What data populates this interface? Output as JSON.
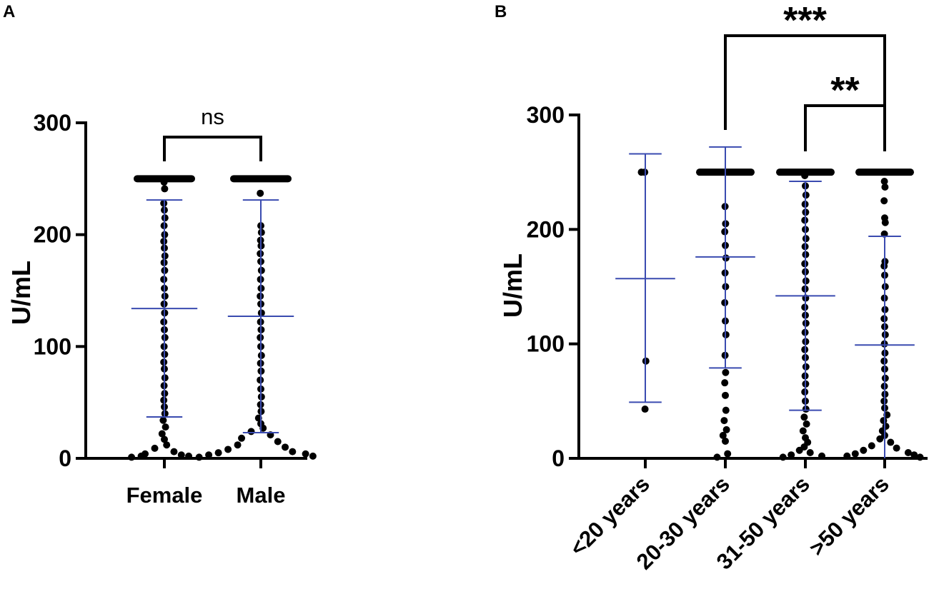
{
  "chart_data": [
    {
      "panel": "A",
      "type": "scatter",
      "ylabel": "U/mL",
      "ylim": [
        0,
        300
      ],
      "yticks": [
        "0",
        "100",
        "200",
        "300"
      ],
      "categories": [
        "Female",
        "Male"
      ],
      "groups": [
        {
          "name": "Female",
          "mean": 134,
          "sd_upper": 231,
          "sd_lower": 37,
          "cap_value": 250,
          "points": [
            250,
            250,
            250,
            250,
            250,
            250,
            250,
            250,
            250,
            250,
            250,
            250,
            250,
            250,
            250,
            250,
            250,
            250,
            247,
            241,
            228,
            222,
            215,
            208,
            200,
            194,
            188,
            181,
            175,
            168,
            160,
            152,
            145,
            138,
            130,
            122,
            115,
            108,
            100,
            93,
            86,
            80,
            72,
            65,
            58,
            52,
            46,
            40,
            34,
            28,
            22,
            17,
            12,
            9,
            6,
            4,
            3,
            2,
            2,
            1
          ]
        },
        {
          "name": "Male",
          "mean": 127,
          "sd_upper": 231,
          "sd_lower": 23,
          "cap_value": 250,
          "points": [
            250,
            250,
            250,
            250,
            250,
            250,
            250,
            250,
            250,
            250,
            250,
            250,
            250,
            250,
            250,
            250,
            250,
            250,
            250,
            250,
            237,
            208,
            202,
            195,
            190,
            183,
            176,
            168,
            160,
            152,
            145,
            138,
            130,
            122,
            115,
            108,
            100,
            92,
            85,
            78,
            70,
            62,
            55,
            48,
            42,
            36,
            31,
            27,
            24,
            21,
            18,
            15,
            12,
            10,
            8,
            6,
            5,
            4,
            3,
            2,
            1
          ]
        }
      ],
      "comparisons": [
        {
          "from": "Female",
          "to": "Male",
          "label": "ns",
          "level": 1
        }
      ]
    },
    {
      "panel": "B",
      "type": "scatter",
      "ylabel": "U/mL",
      "ylim": [
        0,
        300
      ],
      "yticks": [
        "0",
        "100",
        "200",
        "300"
      ],
      "categories": [
        "<20 years",
        "20-30 years",
        "31-50 years",
        ">50 years"
      ],
      "groups": [
        {
          "name": "<20 years",
          "mean": 157,
          "sd_upper": 266,
          "sd_lower": 49,
          "cap_value": null,
          "points": [
            250,
            250,
            85,
            43
          ]
        },
        {
          "name": "20-30 years",
          "mean": 176,
          "sd_upper": 272,
          "sd_lower": 79,
          "cap_value": 250,
          "points": [
            250,
            250,
            250,
            250,
            250,
            250,
            250,
            250,
            250,
            250,
            250,
            250,
            250,
            220,
            205,
            198,
            186,
            175,
            162,
            150,
            136,
            120,
            108,
            90,
            75,
            66,
            55,
            42,
            33,
            25,
            20,
            15,
            4,
            1
          ]
        },
        {
          "name": "31-50 years",
          "mean": 142,
          "sd_upper": 242,
          "sd_lower": 42,
          "cap_value": 250,
          "points": [
            250,
            250,
            250,
            250,
            250,
            250,
            250,
            250,
            250,
            250,
            250,
            250,
            250,
            250,
            250,
            247,
            238,
            230,
            222,
            215,
            208,
            200,
            192,
            185,
            178,
            170,
            163,
            155,
            148,
            140,
            132,
            125,
            118,
            110,
            102,
            95,
            88,
            80,
            72,
            65,
            58,
            50,
            43,
            36,
            30,
            24,
            18,
            14,
            10,
            7,
            5,
            3,
            2,
            1
          ]
        },
        {
          "name": ">50 years",
          "mean": 99,
          "sd_upper": 194,
          "sd_lower": null,
          "cap_value": 250,
          "points": [
            250,
            250,
            250,
            250,
            250,
            250,
            250,
            250,
            250,
            250,
            250,
            250,
            250,
            250,
            250,
            250,
            250,
            250,
            242,
            237,
            225,
            210,
            206,
            196,
            172,
            168,
            160,
            150,
            140,
            130,
            122,
            115,
            108,
            100,
            92,
            85,
            78,
            70,
            63,
            56,
            50,
            44,
            38,
            33,
            28,
            24,
            20,
            17,
            14,
            11,
            9,
            7,
            5,
            4,
            3,
            2,
            1
          ]
        }
      ],
      "comparisons": [
        {
          "from": "31-50 years",
          "to": ">50 years",
          "label": "**",
          "level": 1
        },
        {
          "from": "20-30 years",
          "to": ">50 years",
          "label": "***",
          "level": 2
        }
      ]
    }
  ]
}
